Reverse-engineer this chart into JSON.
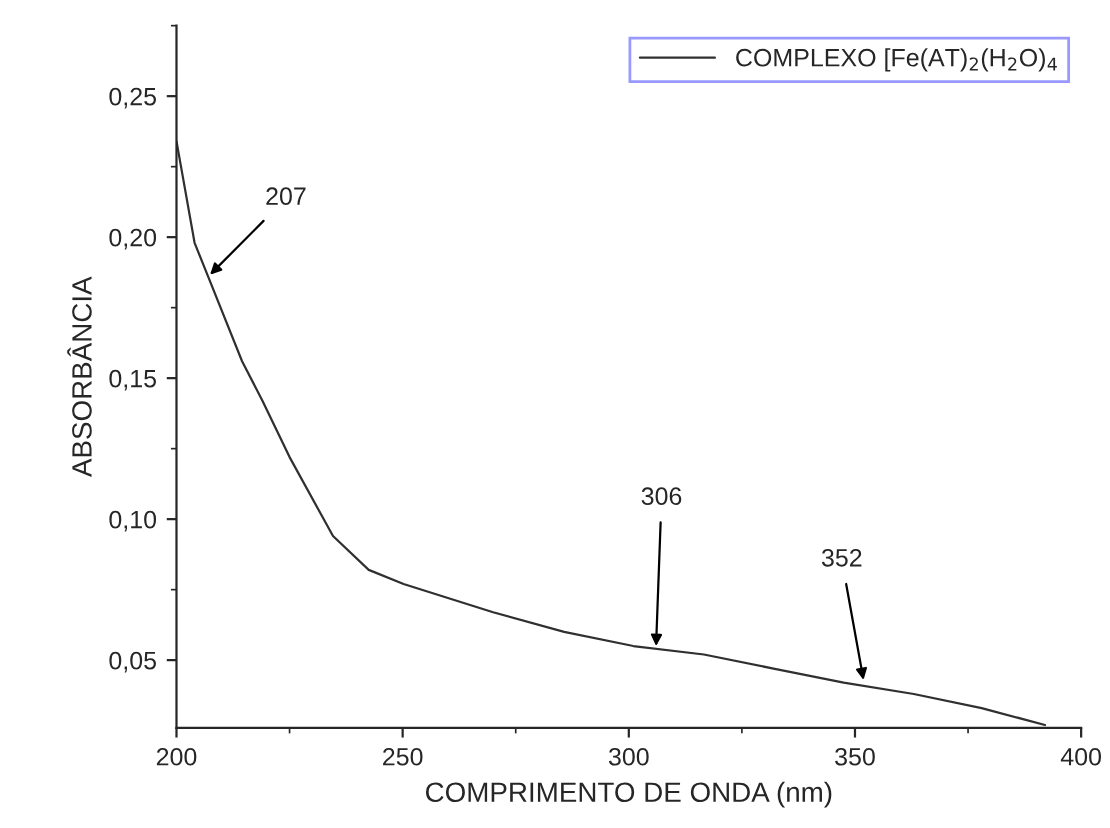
{
  "chart_data": {
    "type": "line",
    "xlabel": "COMPRIMENTO DE ONDA (nm)",
    "ylabel": "ABSORBÂNCIA",
    "series": [
      {
        "name": "COMPLEXO [Fe(AT)$_{2}$(H$_{2}$O)$_{4}$",
        "color": "#303030",
        "x": [
          200,
          201,
          204,
          207,
          214.5,
          219,
          225,
          234.6,
          242.5,
          250.2,
          270,
          285.7,
          301,
          316.6,
          332,
          347.5,
          363,
          378,
          392
        ],
        "values": [
          0.234,
          0.225,
          0.198,
          0.186,
          0.156,
          0.142,
          0.122,
          0.094,
          0.082,
          0.077,
          0.067,
          0.06,
          0.055,
          0.052,
          0.047,
          0.042,
          0.038,
          0.033,
          0.027
        ]
      }
    ],
    "xlim": [
      200,
      400
    ],
    "xticks": [
      200,
      250,
      300,
      350,
      400
    ],
    "ylim": [
      0.026,
      0.275
    ],
    "yticks": [
      {
        "value": 0.05,
        "label": "0,05"
      },
      {
        "value": 0.1,
        "label": "0,10"
      },
      {
        "value": 0.15,
        "label": "0,15"
      },
      {
        "value": 0.2,
        "label": "0,20"
      },
      {
        "value": 0.25,
        "label": "0,25"
      }
    ],
    "annotations": [
      {
        "text": "207",
        "x": 207,
        "y": 0.186
      },
      {
        "text": "306",
        "x": 306,
        "y": 0.054
      },
      {
        "text": "352",
        "x": 352,
        "y": 0.042
      }
    ],
    "legend": "top right",
    "grid": false,
    "marker": "none",
    "line_style": "solid"
  }
}
